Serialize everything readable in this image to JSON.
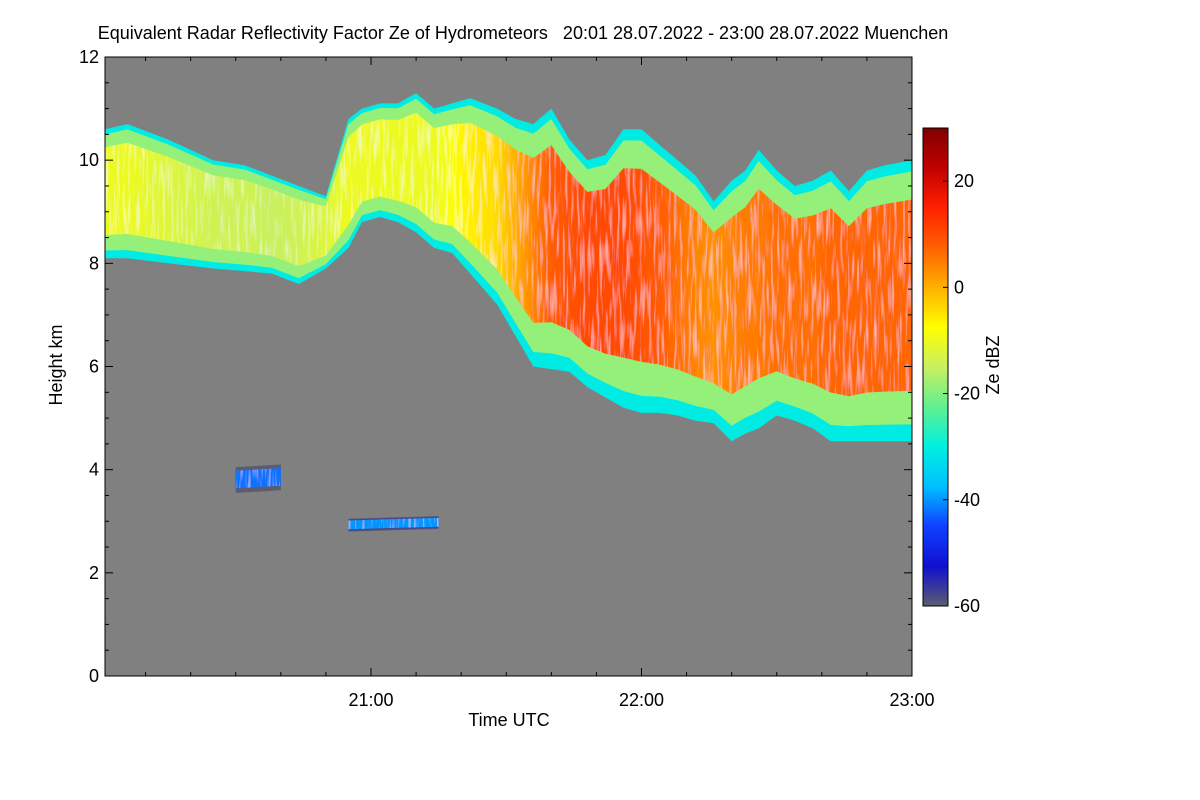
{
  "chart_data": {
    "type": "heatmap",
    "title": "Equivalent Radar Reflectivity Factor Ze of Hydrometeors   20:01 28.07.2022 - 23:00 28.07.2022 Muenchen",
    "xlabel": "Time UTC",
    "ylabel": "Height km",
    "x_range_minutes_utc": [
      1201,
      1380
    ],
    "x_ticks": [
      {
        "minute": 1260,
        "label": "21:00"
      },
      {
        "minute": 1320,
        "label": "22:00"
      },
      {
        "minute": 1380,
        "label": "23:00"
      }
    ],
    "x_minor_tick_step_minutes": 10,
    "ylim": [
      0,
      12
    ],
    "y_ticks": [
      0,
      2,
      4,
      6,
      8,
      10,
      12
    ],
    "colorbar": {
      "label": "Ze dBZ",
      "range": [
        -60,
        30
      ],
      "ticks": [
        -60,
        -40,
        -20,
        0,
        20
      ],
      "colors": [
        "#5c5c70",
        "#1010d0",
        "#1040ff",
        "#00c0ff",
        "#00f0e0",
        "#60f090",
        "#c8f060",
        "#ffff00",
        "#ffb000",
        "#ff6000",
        "#ff2000",
        "#c00000",
        "#800000"
      ]
    },
    "background_color": "#808080",
    "layers": [
      {
        "name": "upper-cloud",
        "time": [
          1201,
          1206,
          1215,
          1225,
          1232,
          1238,
          1244,
          1250,
          1255,
          1258,
          1262,
          1266,
          1270,
          1274,
          1278,
          1282,
          1288,
          1292,
          1296,
          1300,
          1304,
          1308,
          1312,
          1316,
          1320,
          1324,
          1328,
          1332,
          1336,
          1340,
          1343,
          1346,
          1350,
          1354,
          1358,
          1362,
          1366,
          1370,
          1374,
          1380
        ],
        "top_km": [
          10.6,
          10.7,
          10.4,
          10.0,
          9.9,
          9.7,
          9.5,
          9.3,
          10.8,
          11.0,
          11.1,
          11.1,
          11.3,
          11.0,
          11.1,
          11.2,
          11.0,
          10.8,
          10.7,
          11.0,
          10.4,
          10.0,
          10.1,
          10.6,
          10.6,
          10.3,
          10.0,
          9.7,
          9.2,
          9.6,
          9.8,
          10.2,
          9.8,
          9.5,
          9.6,
          9.8,
          9.4,
          9.8,
          9.9,
          10.0
        ],
        "base_km": [
          8.1,
          8.1,
          8.0,
          7.9,
          7.85,
          7.8,
          7.6,
          7.9,
          8.3,
          8.8,
          8.9,
          8.8,
          8.6,
          8.3,
          8.2,
          7.8,
          7.2,
          6.6,
          6.0,
          5.95,
          5.9,
          5.6,
          5.4,
          5.2,
          5.1,
          5.1,
          5.05,
          4.95,
          4.9,
          4.55,
          4.7,
          4.8,
          5.05,
          4.95,
          4.8,
          4.55,
          4.55,
          4.55,
          4.55,
          4.55
        ],
        "core_dbz": [
          -10,
          -10,
          -12,
          -14,
          -14,
          -15,
          -14,
          -12,
          -10,
          -10,
          -10,
          -10,
          -10,
          -10,
          -8,
          -6,
          -4,
          0,
          4,
          8,
          9,
          10,
          10,
          10,
          9,
          8,
          6,
          4,
          3,
          4,
          5,
          5,
          6,
          6,
          6,
          7,
          7,
          7,
          7,
          7
        ]
      },
      {
        "name": "patch-4km",
        "time": [
          1230,
          1240
        ],
        "top_km": [
          4.05,
          4.1
        ],
        "base_km": [
          3.55,
          3.6
        ],
        "core_dbz": [
          -42,
          -42
        ]
      },
      {
        "name": "patch-3km",
        "time": [
          1255,
          1275
        ],
        "top_km": [
          3.05,
          3.1
        ],
        "base_km": [
          2.8,
          2.85
        ],
        "core_dbz": [
          -40,
          -40
        ]
      }
    ]
  }
}
